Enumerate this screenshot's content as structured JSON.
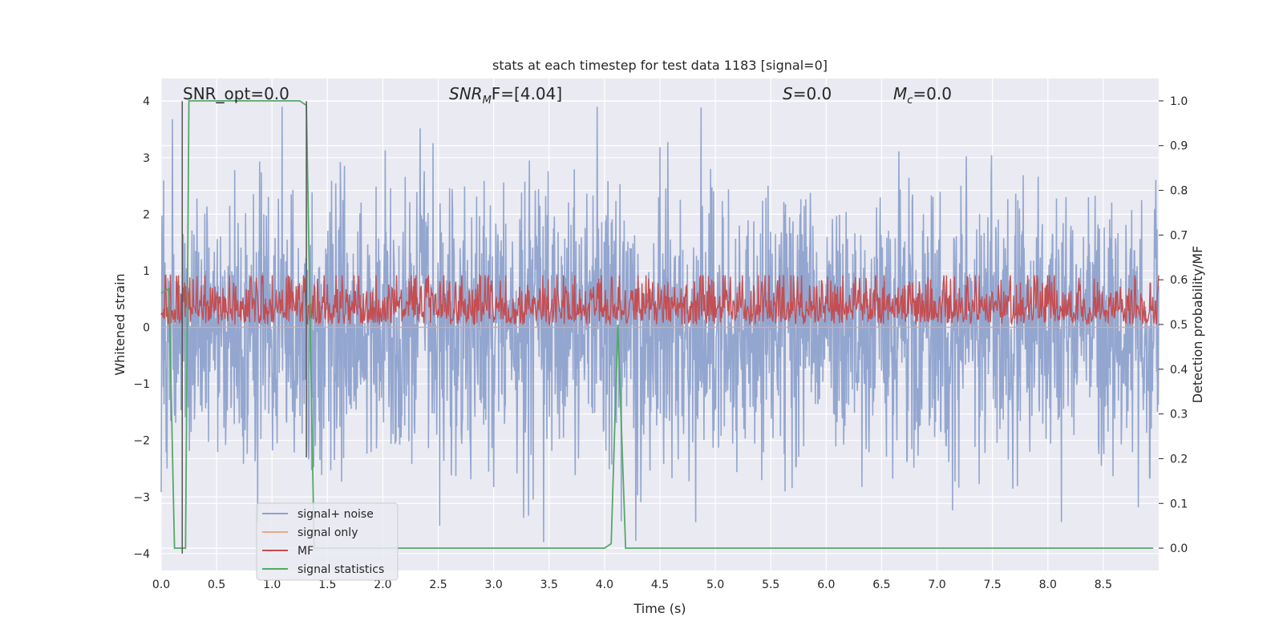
{
  "chart_data": {
    "type": "line",
    "title": "stats at each timestep for test data 1183 [signal=0]",
    "xlabel": "Time (s)",
    "ylabel": "Whitened strain",
    "ylabel_right": "Detection probability/MF",
    "xlim": [
      0.0,
      9.0
    ],
    "ylim": [
      -4.3,
      4.4
    ],
    "ylim_right": [
      -0.05,
      1.05
    ],
    "x_ticks": [
      "0.0",
      "0.5",
      "1.0",
      "1.5",
      "2.0",
      "2.5",
      "3.0",
      "3.5",
      "4.0",
      "4.5",
      "5.0",
      "5.5",
      "6.0",
      "6.5",
      "7.0",
      "7.5",
      "8.0",
      "8.5"
    ],
    "y_ticks": [
      "-4",
      "-3",
      "-2",
      "-1",
      "0",
      "1",
      "2",
      "3",
      "4"
    ],
    "y_ticks_right": [
      "0.0",
      "0.1",
      "0.2",
      "0.3",
      "0.4",
      "0.5",
      "0.6",
      "0.7",
      "0.8",
      "0.9",
      "1.0"
    ],
    "grid": true,
    "legend_position": "lower-left",
    "annotations": {
      "snr_opt": "SNR_opt=0.0",
      "snr_mf_base": "SNR",
      "snr_mf_sub": "M",
      "snr_mf_rest": "F=[4.04]",
      "s_base": "S",
      "s_rest": "=0.0",
      "mc_base": "M",
      "mc_sub": "c",
      "mc_rest": "=0.0"
    },
    "vlines": [
      {
        "x": 0.19,
        "y": [
          -4.0,
          4.0
        ]
      },
      {
        "x": 1.31,
        "y": [
          -2.3,
          4.0
        ]
      }
    ],
    "series": [
      {
        "name": "signal+ noise",
        "color": "#8ea2cc",
        "axis": "left",
        "kind": "noise",
        "typical_range": [
          -1.5,
          1.7
        ],
        "extreme_range": [
          -3.8,
          3.9
        ]
      },
      {
        "name": "signal only",
        "color": "#e8a989",
        "axis": "left",
        "kind": "flat",
        "value": 0.0
      },
      {
        "name": "MF",
        "color": "#c44e52",
        "axis": "right",
        "kind": "mf",
        "typical_range": [
          0.5,
          0.56
        ],
        "extreme_range": [
          0.5,
          0.61
        ]
      },
      {
        "name": "signal statistics",
        "color": "#55a868",
        "axis": "right",
        "kind": "line",
        "x": [
          0.0,
          0.07,
          0.12,
          0.19,
          0.22,
          0.25,
          0.5,
          1.0,
          1.25,
          1.31,
          1.38,
          1.45,
          2.0,
          3.0,
          4.0,
          4.06,
          4.12,
          4.19,
          4.5,
          5.0,
          6.0,
          7.0,
          8.0,
          8.95
        ],
        "y": [
          0.57,
          0.58,
          0.0,
          0.0,
          0.0,
          1.0,
          1.0,
          1.0,
          1.0,
          0.99,
          0.0,
          0.0,
          0.0,
          0.0,
          0.0,
          0.01,
          0.5,
          0.0,
          0.0,
          0.0,
          0.0,
          0.0,
          0.0,
          0.0
        ]
      }
    ]
  }
}
